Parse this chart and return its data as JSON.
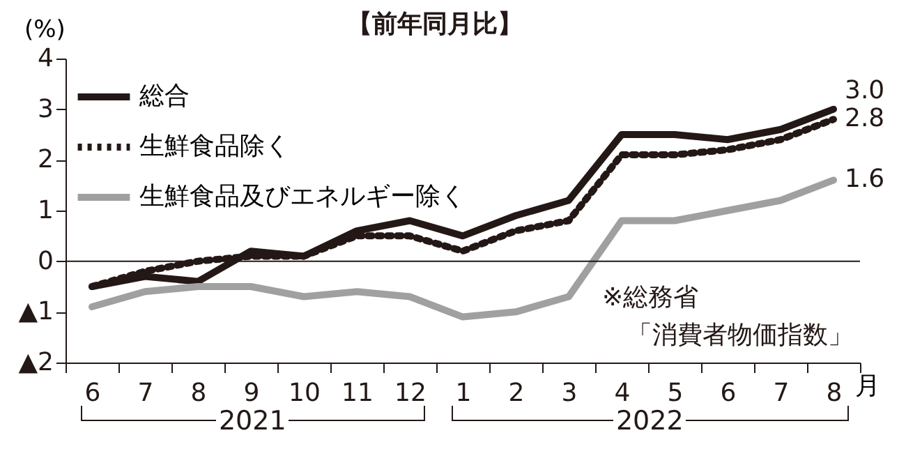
{
  "chart_data": {
    "type": "line",
    "title": "【前年同月比】",
    "ylabel": "(%)",
    "xlabel": "月",
    "categories": [
      "6",
      "7",
      "8",
      "9",
      "10",
      "11",
      "12",
      "1",
      "2",
      "3",
      "4",
      "5",
      "6",
      "7",
      "8"
    ],
    "series": [
      {
        "name": "総合",
        "color": "#231815",
        "line_style": "solid",
        "values": [
          -0.5,
          -0.3,
          -0.4,
          0.2,
          0.1,
          0.6,
          0.8,
          0.5,
          0.9,
          1.2,
          2.5,
          2.5,
          2.4,
          2.6,
          3.0
        ],
        "value_labels": [
          null,
          null,
          null,
          null,
          null,
          null,
          null,
          null,
          null,
          null,
          null,
          null,
          null,
          null,
          "3.0"
        ]
      },
      {
        "name": "生鮮食品除く",
        "color": "#231815",
        "line_style": "dotted",
        "values": [
          -0.5,
          -0.2,
          0.0,
          0.1,
          0.1,
          0.5,
          0.5,
          0.2,
          0.6,
          0.8,
          2.1,
          2.1,
          2.2,
          2.4,
          2.8
        ],
        "value_labels": [
          null,
          null,
          null,
          null,
          null,
          null,
          null,
          null,
          null,
          null,
          null,
          null,
          null,
          null,
          "2.8"
        ]
      },
      {
        "name": "生鮮食品及びエネルギー除く",
        "color": "#a0a0a0",
        "line_style": "solid",
        "values": [
          -0.9,
          -0.6,
          -0.5,
          -0.5,
          -0.7,
          -0.6,
          -0.7,
          -1.1,
          -1.0,
          -0.7,
          0.8,
          0.8,
          1.0,
          1.2,
          1.6
        ],
        "value_labels": [
          null,
          null,
          null,
          null,
          null,
          null,
          null,
          null,
          null,
          null,
          null,
          null,
          null,
          null,
          "1.6"
        ]
      }
    ],
    "ylim": [
      -2,
      4
    ],
    "yticks": [
      4,
      3,
      2,
      1,
      0,
      {
        "value": -1,
        "label": "▲1"
      },
      {
        "value": -2,
        "label": "▲2"
      }
    ],
    "ref_lines": [
      {
        "axis": "y",
        "value": 0,
        "color": "#231815"
      }
    ],
    "legend": "top left",
    "grid": false,
    "annotations": [
      "2021",
      "2022",
      "※総務省",
      "「消費者物価指数」"
    ]
  }
}
